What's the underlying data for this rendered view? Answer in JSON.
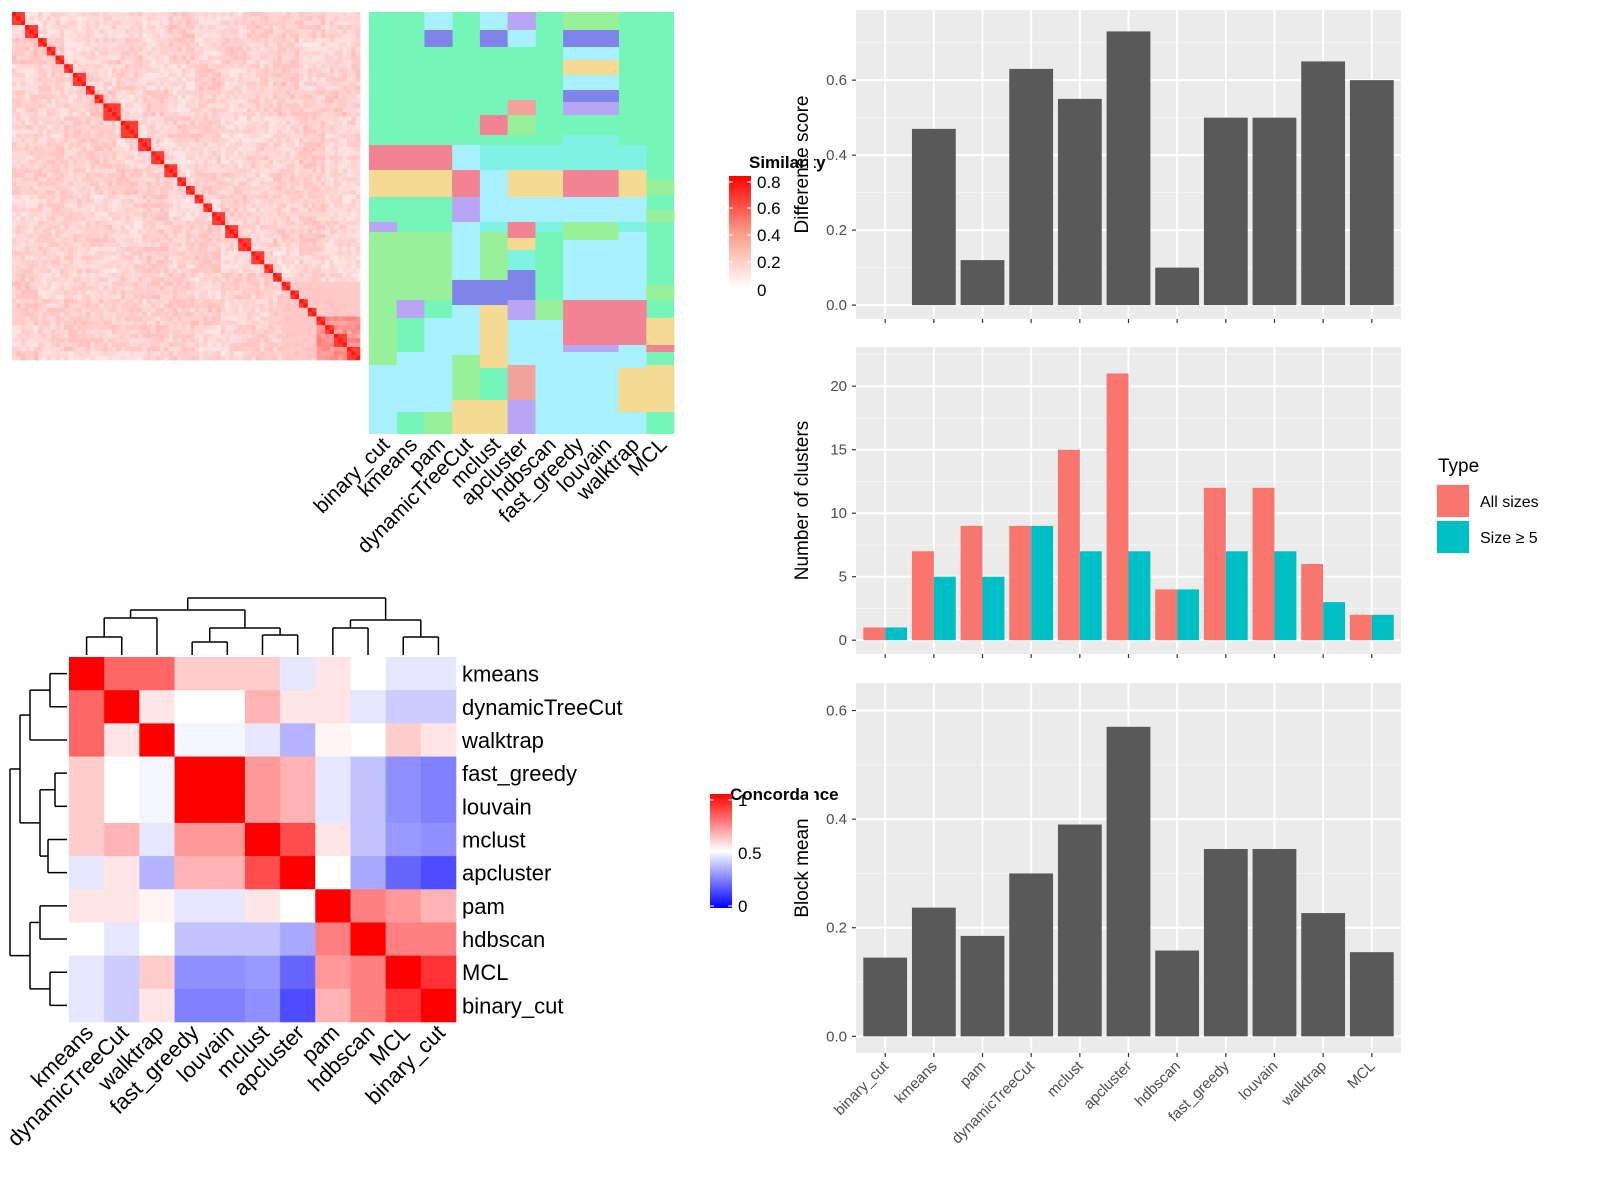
{
  "simmat": {
    "legend_title": "Similarity",
    "legend_ticks": [
      "0.8",
      "0.6",
      "0.4",
      "0.2",
      "0"
    ],
    "methods": [
      "binary_cut",
      "kmeans",
      "pam",
      "dynamicTreeCut",
      "mclust",
      "apcluster",
      "hdbscan",
      "fast_greedy",
      "louvain",
      "walktrap",
      "MCL"
    ]
  },
  "concordance": {
    "legend_title": "Concordance",
    "legend_ticks": [
      "1",
      "0.5",
      "0"
    ],
    "methods": [
      "kmeans",
      "dynamicTreeCut",
      "walktrap",
      "fast_greedy",
      "louvain",
      "mclust",
      "apcluster",
      "pam",
      "hdbscan",
      "MCL",
      "binary_cut"
    ],
    "matrix": [
      [
        1.0,
        0.8,
        0.8,
        0.6,
        0.6,
        0.6,
        0.45,
        0.55,
        0.5,
        0.45,
        0.45
      ],
      [
        0.8,
        1.0,
        0.55,
        0.5,
        0.5,
        0.65,
        0.55,
        0.55,
        0.45,
        0.4,
        0.4
      ],
      [
        0.8,
        0.55,
        1.0,
        0.48,
        0.48,
        0.45,
        0.35,
        0.52,
        0.5,
        0.6,
        0.55
      ],
      [
        0.6,
        0.5,
        0.48,
        1.0,
        1.0,
        0.7,
        0.65,
        0.45,
        0.38,
        0.28,
        0.25
      ],
      [
        0.6,
        0.5,
        0.48,
        1.0,
        1.0,
        0.7,
        0.65,
        0.45,
        0.38,
        0.28,
        0.25
      ],
      [
        0.6,
        0.65,
        0.45,
        0.7,
        0.7,
        1.0,
        0.85,
        0.55,
        0.38,
        0.3,
        0.28
      ],
      [
        0.45,
        0.55,
        0.35,
        0.65,
        0.65,
        0.85,
        1.0,
        0.5,
        0.33,
        0.2,
        0.15
      ],
      [
        0.55,
        0.55,
        0.52,
        0.45,
        0.45,
        0.55,
        0.5,
        1.0,
        0.75,
        0.7,
        0.65
      ],
      [
        0.5,
        0.45,
        0.5,
        0.38,
        0.38,
        0.38,
        0.33,
        0.75,
        1.0,
        0.75,
        0.75
      ],
      [
        0.45,
        0.4,
        0.6,
        0.28,
        0.28,
        0.3,
        0.2,
        0.7,
        0.75,
        1.0,
        0.9
      ],
      [
        0.45,
        0.4,
        0.55,
        0.25,
        0.25,
        0.28,
        0.15,
        0.65,
        0.75,
        0.9,
        1.0
      ]
    ]
  },
  "chart_data": [
    {
      "type": "bar",
      "categories": [
        "binary_cut",
        "kmeans",
        "pam",
        "dynamicTreeCut",
        "mclust",
        "apcluster",
        "hdbscan",
        "fast_greedy",
        "louvain",
        "walktrap",
        "MCL"
      ],
      "values": [
        0.0,
        0.47,
        0.12,
        0.63,
        0.55,
        0.73,
        0.1,
        0.5,
        0.5,
        0.65,
        0.6
      ],
      "ylabel": "Difference score",
      "yticks": [
        "0.0",
        "0.2",
        "0.4",
        "0.6"
      ],
      "ylim": [
        0,
        0.75
      ]
    },
    {
      "type": "bar",
      "categories": [
        "binary_cut",
        "kmeans",
        "pam",
        "dynamicTreeCut",
        "mclust",
        "apcluster",
        "hdbscan",
        "fast_greedy",
        "louvain",
        "walktrap",
        "MCL"
      ],
      "series": [
        {
          "name": "All sizes",
          "color": "#F8766D",
          "values": [
            1,
            7,
            9,
            9,
            15,
            21,
            4,
            12,
            12,
            6,
            2
          ]
        },
        {
          "name": "Size ≥ 5",
          "color": "#00BFC4",
          "values": [
            1,
            5,
            5,
            9,
            7,
            7,
            4,
            7,
            7,
            3,
            2
          ]
        }
      ],
      "ylabel": "Number of clusters",
      "yticks": [
        "0",
        "5",
        "10",
        "15",
        "20"
      ],
      "ylim": [
        0,
        22
      ],
      "legend_title": "Type",
      "legend_position": "right"
    },
    {
      "type": "bar",
      "categories": [
        "binary_cut",
        "kmeans",
        "pam",
        "dynamicTreeCut",
        "mclust",
        "apcluster",
        "hdbscan",
        "fast_greedy",
        "louvain",
        "walktrap",
        "MCL"
      ],
      "values": [
        0.145,
        0.237,
        0.185,
        0.3,
        0.39,
        0.57,
        0.158,
        0.345,
        0.345,
        0.227,
        0.155
      ],
      "ylabel": "Block mean",
      "yticks": [
        "0.0",
        "0.2",
        "0.4",
        "0.6"
      ],
      "ylim": [
        0,
        0.62
      ]
    }
  ]
}
